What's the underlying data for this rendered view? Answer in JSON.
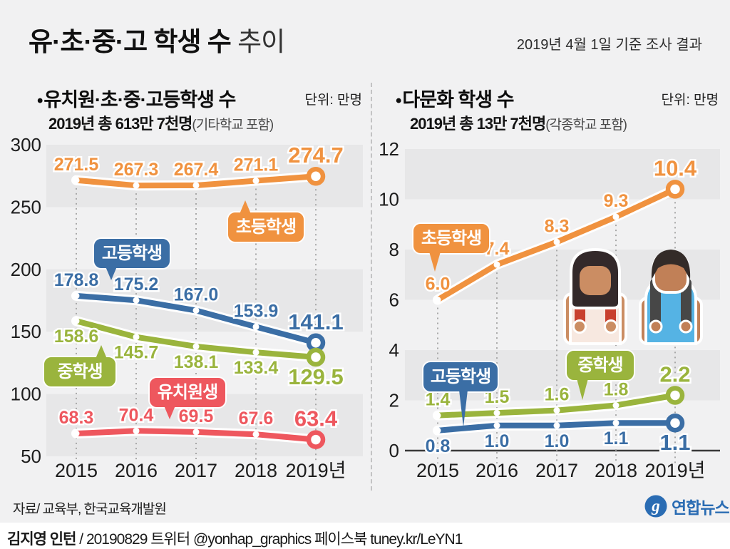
{
  "header": {
    "title": "유·초·중·고 학생 수",
    "title_suffix": " 추이",
    "date_note": "2019년 4월 1일 기준 조사 결과"
  },
  "ui": {
    "bullet": "•"
  },
  "footer": {
    "source": "자료/ 교육부, 한국교육개발원",
    "credit_name": "김지영 인턴",
    "credit_rest": " / 20190829 트위터 @yonhap_graphics  페이스북 tuney.kr/LeYN1",
    "logo_text": "연합뉴스"
  },
  "colors": {
    "elementary": "#f0923f",
    "high_school": "#3b6ea5",
    "middle_school": "#9ab43d",
    "kindergarten": "#ee575e",
    "grid_band": "#e7e7e8",
    "background": "#f1f1f2",
    "logo_blue": "#2a6cb3"
  },
  "chart_data": [
    {
      "type": "line",
      "title": "유치원·초·중·고등학생 수",
      "unit_label": "단위: 만명",
      "subtitle": "2019년 총 613만 7천명",
      "subtitle_note": "(기타학교 포함)",
      "categories": [
        "2015",
        "2016",
        "2017",
        "2018",
        "2019년"
      ],
      "ylim": [
        50,
        300
      ],
      "yticks": [
        300,
        250,
        200,
        150,
        100,
        50
      ],
      "grid_bands": [
        [
          300,
          250
        ],
        [
          200,
          150
        ],
        [
          100,
          50
        ]
      ],
      "legend_position": "on-chart-bubbles",
      "series": [
        {
          "name": "초등학생",
          "color": "#f0923f",
          "values": [
            271.5,
            267.3,
            267.4,
            271.1,
            274.7
          ],
          "label_side": "above"
        },
        {
          "name": "고등학생",
          "color": "#3b6ea5",
          "values": [
            178.8,
            175.2,
            167.0,
            153.9,
            141.1
          ],
          "label_side": "above"
        },
        {
          "name": "중학생",
          "color": "#9ab43d",
          "values": [
            158.6,
            145.7,
            138.1,
            133.4,
            129.5
          ],
          "label_side": "below"
        },
        {
          "name": "유치원생",
          "color": "#ee575e",
          "values": [
            68.3,
            70.4,
            69.5,
            67.6,
            63.4
          ],
          "label_side": "above"
        }
      ]
    },
    {
      "type": "line",
      "title": "다문화 학생 수",
      "unit_label": "단위: 만명",
      "subtitle": "2019년 총 13만 7천명",
      "subtitle_note": "(각종학교 포함)",
      "categories": [
        "2015",
        "2016",
        "2017",
        "2018",
        "2019년"
      ],
      "ylim": [
        0,
        12
      ],
      "yticks": [
        12,
        10,
        8,
        6,
        4,
        2,
        0
      ],
      "grid_bands": [
        [
          12,
          10
        ],
        [
          8,
          6
        ],
        [
          4,
          2
        ]
      ],
      "baseline": 0,
      "legend_position": "on-chart-bubbles",
      "series": [
        {
          "name": "초등학생",
          "color": "#f0923f",
          "values": [
            6.0,
            7.4,
            8.3,
            9.3,
            10.4
          ],
          "label_side": "above"
        },
        {
          "name": "중학생",
          "color": "#9ab43d",
          "values": [
            1.4,
            1.5,
            1.6,
            1.8,
            2.2
          ],
          "label_side": "above"
        },
        {
          "name": "고등학생",
          "color": "#3b6ea5",
          "values": [
            0.8,
            1.0,
            1.0,
            1.1,
            1.1
          ],
          "label_side": "below"
        }
      ]
    }
  ]
}
